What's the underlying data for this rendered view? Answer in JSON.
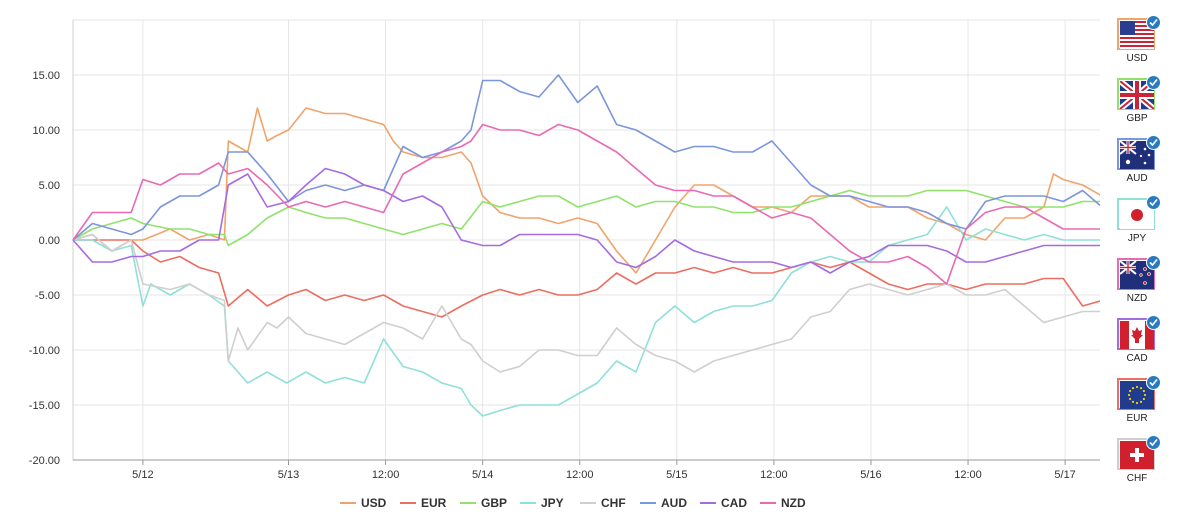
{
  "chart_data": {
    "type": "line",
    "title": "",
    "xlabel": "",
    "ylabel": "",
    "ylim": [
      -20,
      20
    ],
    "y_ticks": [
      "15.00",
      "10.00",
      "5.00",
      "0.00",
      "-5.00",
      "-10.00",
      "-15.00",
      "-20.00"
    ],
    "x_range": [
      0,
      5.3
    ],
    "x_ticks": [
      {
        "label": "5/12",
        "x": 0.36
      },
      {
        "label": "5/13",
        "x": 1.11
      },
      {
        "label": "12:00",
        "x": 1.61
      },
      {
        "label": "5/14",
        "x": 2.11
      },
      {
        "label": "12:00",
        "x": 2.61
      },
      {
        "label": "5/15",
        "x": 3.11
      },
      {
        "label": "12:00",
        "x": 3.61
      },
      {
        "label": "5/16",
        "x": 4.11
      },
      {
        "label": "12:00",
        "x": 4.61
      },
      {
        "label": "5/17",
        "x": 5.11
      }
    ],
    "legend_position": "bottom",
    "series": [
      {
        "name": "USD",
        "color": "#f0a46c",
        "x": [
          0,
          0.1,
          0.2,
          0.3,
          0.36,
          0.5,
          0.6,
          0.7,
          0.78,
          0.8,
          0.9,
          0.95,
          1.0,
          1.05,
          1.11,
          1.2,
          1.3,
          1.4,
          1.5,
          1.6,
          1.65,
          1.7,
          1.8,
          1.9,
          2.0,
          2.05,
          2.11,
          2.2,
          2.3,
          2.4,
          2.5,
          2.6,
          2.7,
          2.8,
          2.9,
          3.0,
          3.1,
          3.2,
          3.3,
          3.4,
          3.5,
          3.6,
          3.7,
          3.8,
          3.9,
          4.0,
          4.1,
          4.2,
          4.3,
          4.4,
          4.5,
          4.6,
          4.7,
          4.8,
          4.9,
          5.0,
          5.05,
          5.1,
          5.2,
          5.3
        ],
        "y": [
          0,
          0.5,
          -1,
          0,
          0,
          1,
          0,
          0.5,
          0,
          9,
          8,
          12,
          9,
          9.5,
          10,
          12,
          11.5,
          11.5,
          11,
          10.5,
          9,
          8,
          7.5,
          7.5,
          8,
          7,
          4,
          2.5,
          2,
          2,
          1.5,
          2,
          1.5,
          -1,
          -3,
          0,
          3,
          5,
          5,
          4,
          3,
          3,
          2.5,
          4,
          4,
          4,
          3,
          3,
          3,
          2,
          1.5,
          0.5,
          0,
          2,
          2,
          3,
          6,
          5.5,
          5,
          4
        ]
      },
      {
        "name": "EUR",
        "color": "#ec6e60",
        "x": [
          0,
          0.1,
          0.2,
          0.3,
          0.36,
          0.45,
          0.55,
          0.65,
          0.75,
          0.8,
          0.9,
          1.0,
          1.11,
          1.2,
          1.3,
          1.4,
          1.5,
          1.6,
          1.7,
          1.8,
          1.9,
          2.0,
          2.11,
          2.2,
          2.3,
          2.4,
          2.5,
          2.6,
          2.7,
          2.8,
          2.9,
          3.0,
          3.1,
          3.2,
          3.3,
          3.4,
          3.5,
          3.6,
          3.7,
          3.8,
          3.9,
          4.0,
          4.1,
          4.2,
          4.3,
          4.4,
          4.5,
          4.6,
          4.7,
          4.8,
          4.9,
          5.0,
          5.1,
          5.2,
          5.3
        ],
        "y": [
          0,
          0,
          0,
          0,
          -1,
          -2,
          -1.5,
          -2.5,
          -3,
          -6,
          -4.5,
          -6,
          -5,
          -4.5,
          -5.5,
          -5,
          -5.5,
          -5,
          -6,
          -6.5,
          -7,
          -6,
          -5,
          -4.5,
          -5,
          -4.5,
          -5,
          -5,
          -4.5,
          -3,
          -4,
          -3,
          -3,
          -2.5,
          -3,
          -2.5,
          -3,
          -3,
          -2.5,
          -2,
          -2.5,
          -2,
          -3,
          -4,
          -4.5,
          -4,
          -4,
          -4.5,
          -4,
          -4,
          -4,
          -3.5,
          -3.5,
          -6,
          -5.5
        ]
      },
      {
        "name": "GBP",
        "color": "#8fe36a",
        "x": [
          0,
          0.1,
          0.2,
          0.3,
          0.36,
          0.5,
          0.6,
          0.7,
          0.78,
          0.8,
          0.9,
          1.0,
          1.11,
          1.2,
          1.3,
          1.4,
          1.5,
          1.6,
          1.7,
          1.8,
          1.9,
          2.0,
          2.11,
          2.2,
          2.3,
          2.4,
          2.5,
          2.6,
          2.7,
          2.8,
          2.9,
          3.0,
          3.1,
          3.2,
          3.3,
          3.4,
          3.5,
          3.6,
          3.7,
          3.8,
          3.9,
          4.0,
          4.1,
          4.2,
          4.3,
          4.4,
          4.5,
          4.6,
          4.7,
          4.8,
          4.9,
          5.0,
          5.1,
          5.2,
          5.3
        ],
        "y": [
          0,
          1,
          1.5,
          2,
          1.5,
          1,
          1,
          0.5,
          0.5,
          -0.5,
          0.5,
          2,
          3,
          2.5,
          2,
          2,
          1.5,
          1,
          0.5,
          1,
          1.5,
          1,
          3.5,
          3,
          3.5,
          4,
          4,
          3,
          3.5,
          4,
          3,
          3.5,
          3.5,
          3,
          3,
          2.5,
          2.5,
          3,
          3,
          3.5,
          4,
          4.5,
          4,
          4,
          4,
          4.5,
          4.5,
          4.5,
          4,
          3.5,
          3,
          3,
          3,
          3.5,
          3.5
        ]
      },
      {
        "name": "JPY",
        "color": "#8fe0d8",
        "x": [
          0,
          0.1,
          0.2,
          0.3,
          0.36,
          0.4,
          0.5,
          0.6,
          0.7,
          0.78,
          0.8,
          0.9,
          1.0,
          1.1,
          1.2,
          1.3,
          1.4,
          1.5,
          1.6,
          1.7,
          1.8,
          1.9,
          2.0,
          2.05,
          2.11,
          2.2,
          2.3,
          2.4,
          2.5,
          2.6,
          2.7,
          2.8,
          2.9,
          3.0,
          3.1,
          3.2,
          3.3,
          3.4,
          3.5,
          3.6,
          3.7,
          3.8,
          3.9,
          4.0,
          4.1,
          4.2,
          4.3,
          4.4,
          4.5,
          4.6,
          4.7,
          4.8,
          4.9,
          5.0,
          5.1,
          5.2,
          5.3
        ],
        "y": [
          0,
          0,
          -1,
          -0.5,
          -6,
          -4,
          -5,
          -4,
          -5,
          -6,
          -11,
          -13,
          -12,
          -13,
          -12,
          -13,
          -12.5,
          -13,
          -9,
          -11.5,
          -12,
          -13,
          -13.5,
          -15,
          -16,
          -15.5,
          -15,
          -15,
          -15,
          -14,
          -13,
          -11,
          -12,
          -7.5,
          -6,
          -7.5,
          -6.5,
          -6,
          -6,
          -5.5,
          -3,
          -2,
          -1.5,
          -2,
          -2,
          -0.5,
          0,
          0.5,
          3,
          0,
          1,
          0.5,
          0,
          0.5,
          0,
          0,
          0
        ]
      },
      {
        "name": "CHF",
        "color": "#cfcfcf",
        "x": [
          0,
          0.1,
          0.2,
          0.3,
          0.36,
          0.5,
          0.6,
          0.7,
          0.78,
          0.8,
          0.85,
          0.9,
          1.0,
          1.05,
          1.11,
          1.2,
          1.3,
          1.4,
          1.5,
          1.6,
          1.7,
          1.8,
          1.9,
          2.0,
          2.05,
          2.11,
          2.2,
          2.3,
          2.4,
          2.5,
          2.6,
          2.7,
          2.8,
          2.9,
          3.0,
          3.1,
          3.2,
          3.3,
          3.4,
          3.5,
          3.6,
          3.7,
          3.8,
          3.9,
          4.0,
          4.1,
          4.2,
          4.3,
          4.4,
          4.5,
          4.6,
          4.7,
          4.8,
          4.9,
          5.0,
          5.1,
          5.2,
          5.3
        ],
        "y": [
          0,
          0.5,
          -1,
          0,
          -4,
          -4.5,
          -4,
          -5,
          -5.5,
          -11,
          -8,
          -10,
          -7.5,
          -8,
          -7,
          -8.5,
          -9,
          -9.5,
          -8.5,
          -7.5,
          -8,
          -9,
          -6,
          -9,
          -9.5,
          -11,
          -12,
          -11.5,
          -10,
          -10,
          -10.5,
          -10.5,
          -8,
          -9.5,
          -10.5,
          -11,
          -12,
          -11,
          -10.5,
          -10,
          -9.5,
          -9,
          -7,
          -6.5,
          -4.5,
          -4,
          -4.5,
          -5,
          -4.5,
          -4,
          -5,
          -5,
          -4.5,
          -6,
          -7.5,
          -7,
          -6.5,
          -6.5
        ]
      },
      {
        "name": "AUD",
        "color": "#7b96dc",
        "x": [
          0,
          0.1,
          0.2,
          0.3,
          0.36,
          0.45,
          0.55,
          0.65,
          0.75,
          0.8,
          0.9,
          1.0,
          1.11,
          1.2,
          1.3,
          1.4,
          1.5,
          1.6,
          1.7,
          1.8,
          1.9,
          2.0,
          2.05,
          2.11,
          2.2,
          2.3,
          2.4,
          2.5,
          2.6,
          2.7,
          2.8,
          2.9,
          3.0,
          3.1,
          3.2,
          3.3,
          3.4,
          3.5,
          3.6,
          3.7,
          3.8,
          3.9,
          4.0,
          4.1,
          4.2,
          4.3,
          4.4,
          4.5,
          4.6,
          4.7,
          4.8,
          4.9,
          5.0,
          5.1,
          5.2,
          5.3
        ],
        "y": [
          0,
          1.5,
          1,
          0.5,
          1,
          3,
          4,
          4,
          5,
          8,
          8,
          6,
          3.5,
          4.5,
          5,
          4.5,
          5,
          4.5,
          8.5,
          7.5,
          8,
          9,
          10,
          14.5,
          14.5,
          13.5,
          13,
          15,
          12.5,
          14,
          10.5,
          10,
          9,
          8,
          8.5,
          8.5,
          8,
          8,
          9,
          7,
          5,
          4,
          4,
          3.5,
          3,
          3,
          2.5,
          1.5,
          1,
          3.5,
          4,
          4,
          4,
          3.5,
          4.5,
          3
        ]
      },
      {
        "name": "CAD",
        "color": "#a56be0",
        "x": [
          0,
          0.1,
          0.2,
          0.3,
          0.36,
          0.45,
          0.55,
          0.65,
          0.75,
          0.8,
          0.9,
          1.0,
          1.11,
          1.2,
          1.3,
          1.4,
          1.5,
          1.6,
          1.7,
          1.8,
          1.9,
          2.0,
          2.11,
          2.2,
          2.3,
          2.4,
          2.5,
          2.6,
          2.7,
          2.8,
          2.9,
          3.0,
          3.1,
          3.2,
          3.3,
          3.4,
          3.5,
          3.6,
          3.7,
          3.8,
          3.9,
          4.0,
          4.1,
          4.2,
          4.3,
          4.4,
          4.5,
          4.6,
          4.7,
          4.8,
          4.9,
          5.0,
          5.1,
          5.2,
          5.3
        ],
        "y": [
          0,
          -2,
          -2,
          -1.5,
          -1.5,
          -1,
          -1,
          0,
          0,
          5,
          6,
          3,
          3.5,
          5,
          6.5,
          6,
          5,
          4.5,
          3.5,
          4,
          3,
          0,
          -0.5,
          -0.5,
          0.5,
          0.5,
          0.5,
          0.5,
          0,
          -2,
          -2.5,
          -1.5,
          0,
          -1,
          -1.5,
          -2,
          -2,
          -2,
          -2.5,
          -2,
          -3,
          -2,
          -1.5,
          -0.5,
          -0.5,
          -0.5,
          -1,
          -2,
          -2,
          -1.5,
          -1,
          -0.5,
          -0.5,
          -0.5,
          -0.5
        ]
      },
      {
        "name": "NZD",
        "color": "#e86ab4",
        "x": [
          0,
          0.1,
          0.2,
          0.3,
          0.36,
          0.45,
          0.55,
          0.65,
          0.75,
          0.8,
          0.9,
          1.0,
          1.11,
          1.2,
          1.3,
          1.4,
          1.5,
          1.6,
          1.7,
          1.8,
          1.9,
          2.0,
          2.05,
          2.11,
          2.2,
          2.3,
          2.4,
          2.5,
          2.6,
          2.7,
          2.8,
          2.9,
          3.0,
          3.1,
          3.2,
          3.3,
          3.4,
          3.5,
          3.6,
          3.7,
          3.8,
          3.9,
          4.0,
          4.1,
          4.2,
          4.3,
          4.4,
          4.5,
          4.6,
          4.7,
          4.8,
          4.9,
          5.0,
          5.1,
          5.2,
          5.3
        ],
        "y": [
          0,
          2.5,
          2.5,
          2.5,
          5.5,
          5,
          6,
          6,
          7,
          6,
          6.5,
          5,
          3,
          3.5,
          3,
          3.5,
          3,
          2.5,
          6,
          7,
          8,
          8.5,
          9,
          10.5,
          10,
          10,
          9.5,
          10.5,
          10,
          9,
          8,
          6.5,
          5,
          4.5,
          4.5,
          4,
          4,
          3,
          2,
          2.5,
          2,
          0.5,
          -1,
          -2,
          -2,
          -1.5,
          -2.5,
          -4,
          1,
          2.5,
          3,
          3,
          2,
          1,
          1,
          1
        ]
      }
    ]
  },
  "sidebar": {
    "currencies": [
      {
        "code": "USD",
        "border": "#f0a46c",
        "icon": "usa-flag-icon"
      },
      {
        "code": "GBP",
        "border": "#8fe36a",
        "icon": "uk-flag-icon"
      },
      {
        "code": "AUD",
        "border": "#7b96dc",
        "icon": "australia-flag-icon"
      },
      {
        "code": "JPY",
        "border": "#8fe0d8",
        "icon": "japan-flag-icon"
      },
      {
        "code": "NZD",
        "border": "#e86ab4",
        "icon": "new-zealand-flag-icon"
      },
      {
        "code": "CAD",
        "border": "#a56be0",
        "icon": "canada-flag-icon"
      },
      {
        "code": "EUR",
        "border": "#ec6e60",
        "icon": "eu-flag-icon"
      },
      {
        "code": "CHF",
        "border": "#cfcfcf",
        "icon": "switzerland-flag-icon"
      }
    ]
  }
}
